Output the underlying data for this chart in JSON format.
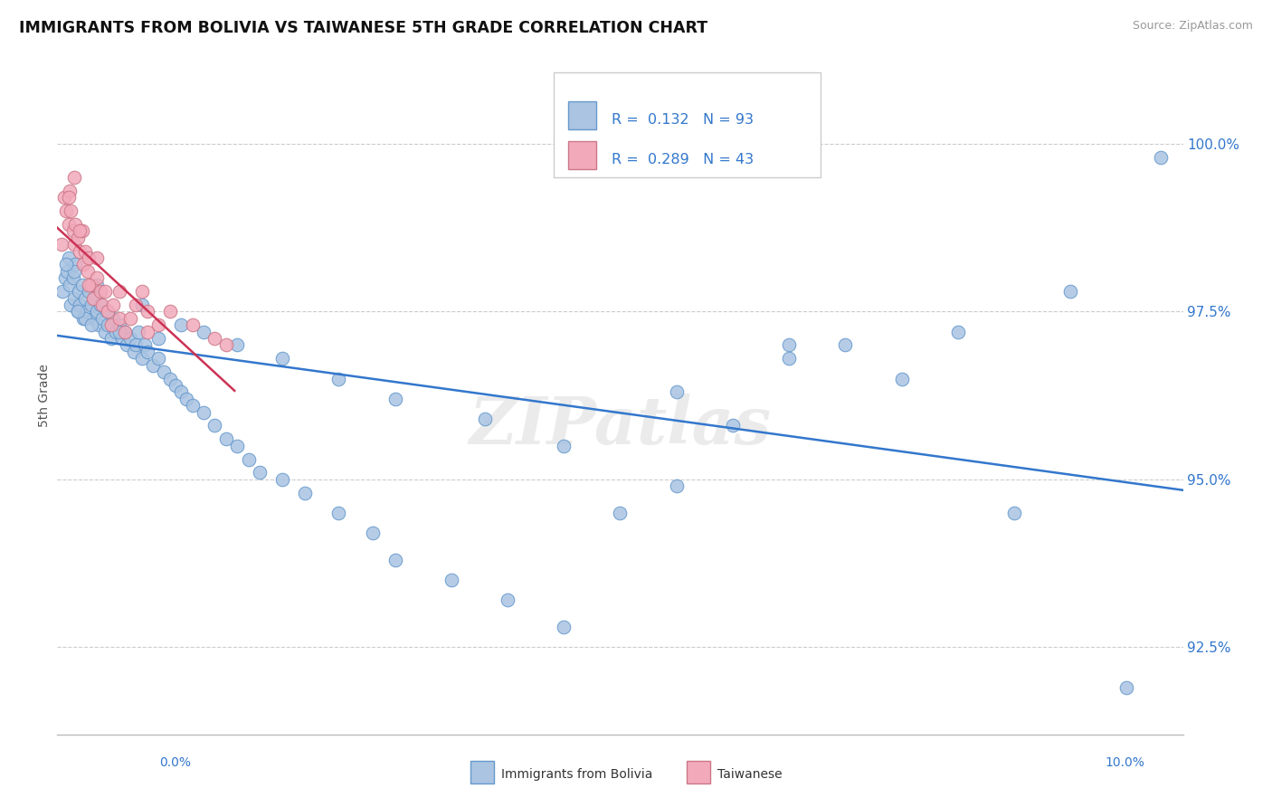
{
  "title": "IMMIGRANTS FROM BOLIVIA VS TAIWANESE 5TH GRADE CORRELATION CHART",
  "source": "Source: ZipAtlas.com",
  "ylabel": "5th Grade",
  "xlim": [
    0.0,
    10.0
  ],
  "ylim": [
    91.2,
    101.3
  ],
  "yticks": [
    92.5,
    95.0,
    97.5,
    100.0
  ],
  "ytick_labels": [
    "92.5%",
    "95.0%",
    "97.5%",
    "100.0%"
  ],
  "bolivia_color": "#aac4e2",
  "taiwan_color": "#f2aabb",
  "bolivia_edge": "#6699cc",
  "taiwan_edge": "#cc7788",
  "trend_bolivia_color": "#3377cc",
  "trend_taiwan_color": "#cc3355",
  "legend_text_color": "#3377cc",
  "legend_r_bolivia": "R =  0.132",
  "legend_n_bolivia": "N = 93",
  "legend_r_taiwan": "R =  0.289",
  "legend_n_taiwan": "N = 43",
  "bolivia_x": [
    0.05,
    0.07,
    0.09,
    0.1,
    0.11,
    0.12,
    0.14,
    0.15,
    0.16,
    0.18,
    0.19,
    0.2,
    0.22,
    0.23,
    0.25,
    0.26,
    0.28,
    0.3,
    0.32,
    0.33,
    0.35,
    0.37,
    0.38,
    0.4,
    0.42,
    0.44,
    0.45,
    0.48,
    0.5,
    0.52,
    0.55,
    0.58,
    0.6,
    0.62,
    0.65,
    0.68,
    0.7,
    0.72,
    0.75,
    0.78,
    0.8,
    0.85,
    0.9,
    0.95,
    1.0,
    1.05,
    1.1,
    1.15,
    1.2,
    1.3,
    1.4,
    1.5,
    1.6,
    1.7,
    1.8,
    2.0,
    2.2,
    2.5,
    2.8,
    3.0,
    3.5,
    4.0,
    4.5,
    5.0,
    5.5,
    6.0,
    6.5,
    7.0,
    8.0,
    9.0,
    9.8,
    0.15,
    0.25,
    0.35,
    0.55,
    0.75,
    0.9,
    1.1,
    1.3,
    1.6,
    2.0,
    2.5,
    3.0,
    3.8,
    4.5,
    5.5,
    6.5,
    7.5,
    8.5,
    9.5,
    0.08,
    0.18,
    0.3
  ],
  "bolivia_y": [
    97.8,
    98.0,
    98.1,
    98.3,
    97.9,
    97.6,
    98.0,
    97.7,
    98.2,
    97.5,
    97.8,
    97.6,
    97.9,
    97.4,
    97.7,
    97.5,
    97.8,
    97.6,
    97.4,
    97.7,
    97.5,
    97.3,
    97.6,
    97.4,
    97.2,
    97.5,
    97.3,
    97.1,
    97.4,
    97.2,
    97.3,
    97.1,
    97.2,
    97.0,
    97.1,
    96.9,
    97.0,
    97.2,
    96.8,
    97.0,
    96.9,
    96.7,
    96.8,
    96.6,
    96.5,
    96.4,
    96.3,
    96.2,
    96.1,
    96.0,
    95.8,
    95.6,
    95.5,
    95.3,
    95.1,
    95.0,
    94.8,
    94.5,
    94.2,
    93.8,
    93.5,
    93.2,
    92.8,
    94.5,
    96.3,
    95.8,
    97.0,
    97.0,
    97.2,
    97.8,
    99.8,
    98.1,
    97.4,
    97.9,
    97.2,
    97.6,
    97.1,
    97.3,
    97.2,
    97.0,
    96.8,
    96.5,
    96.2,
    95.9,
    95.5,
    94.9,
    96.8,
    96.5,
    94.5,
    91.9,
    98.2,
    97.5,
    97.3
  ],
  "taiwan_x": [
    0.04,
    0.06,
    0.08,
    0.1,
    0.11,
    0.12,
    0.14,
    0.15,
    0.16,
    0.18,
    0.2,
    0.22,
    0.23,
    0.25,
    0.27,
    0.28,
    0.3,
    0.32,
    0.35,
    0.38,
    0.4,
    0.42,
    0.45,
    0.48,
    0.5,
    0.55,
    0.6,
    0.65,
    0.7,
    0.75,
    0.8,
    0.9,
    1.0,
    1.2,
    1.4,
    0.1,
    0.15,
    0.2,
    0.28,
    0.35,
    0.55,
    0.8,
    1.5
  ],
  "taiwan_y": [
    98.5,
    99.2,
    99.0,
    98.8,
    99.3,
    99.0,
    98.7,
    98.5,
    98.8,
    98.6,
    98.4,
    98.7,
    98.2,
    98.4,
    98.1,
    98.3,
    97.9,
    97.7,
    98.0,
    97.8,
    97.6,
    97.8,
    97.5,
    97.3,
    97.6,
    97.4,
    97.2,
    97.4,
    97.6,
    97.8,
    97.5,
    97.3,
    97.5,
    97.3,
    97.1,
    99.2,
    99.5,
    98.7,
    97.9,
    98.3,
    97.8,
    97.2,
    97.0
  ]
}
